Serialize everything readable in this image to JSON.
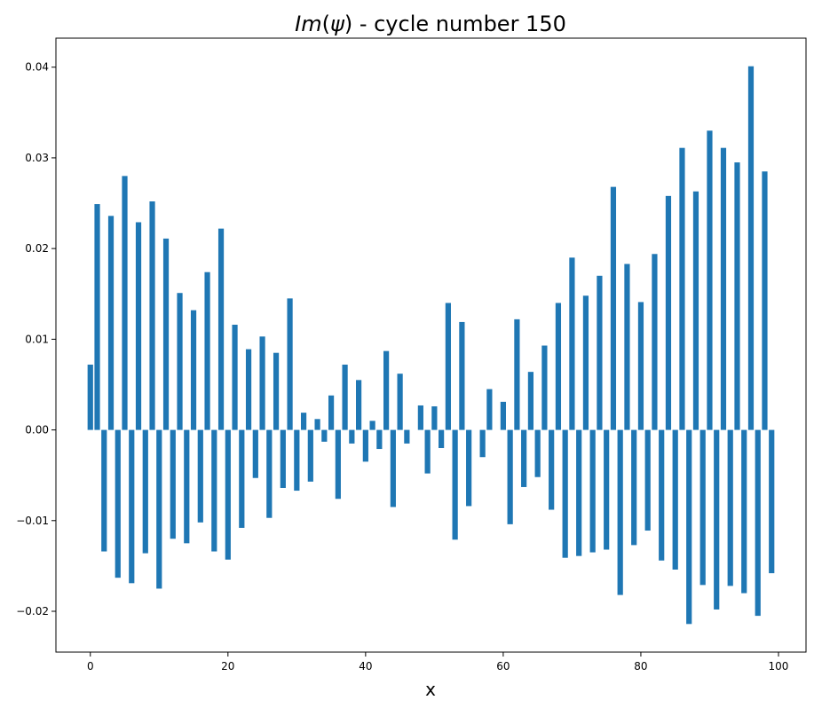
{
  "chart_data": {
    "type": "bar",
    "title_prefix": "Im",
    "title_symbol": "ψ",
    "title_suffix": " - cycle number 150",
    "xlabel": "x",
    "ylabel": "",
    "xlim": [
      -5,
      104
    ],
    "ylim": [
      -0.0245,
      0.0432
    ],
    "x_ticks": [
      0,
      20,
      40,
      60,
      80,
      100
    ],
    "x_tick_labels": [
      "0",
      "20",
      "40",
      "60",
      "80",
      "100"
    ],
    "y_ticks": [
      -0.02,
      -0.01,
      0.0,
      0.01,
      0.02,
      0.03,
      0.04
    ],
    "y_tick_labels": [
      "−0.02",
      "−0.01",
      "0.00",
      "0.01",
      "0.02",
      "0.03",
      "0.04"
    ],
    "bar_width": 0.8,
    "color": "#1f77b4",
    "grid": false,
    "x": [
      0,
      1,
      2,
      3,
      4,
      5,
      6,
      7,
      8,
      9,
      10,
      11,
      12,
      13,
      14,
      15,
      16,
      17,
      18,
      19,
      20,
      21,
      22,
      23,
      24,
      25,
      26,
      27,
      28,
      29,
      30,
      31,
      32,
      33,
      34,
      35,
      36,
      37,
      38,
      39,
      40,
      41,
      42,
      43,
      44,
      45,
      46,
      47,
      48,
      49,
      50,
      51,
      52,
      53,
      54,
      55,
      56,
      57,
      58,
      59,
      60,
      61,
      62,
      63,
      64,
      65,
      66,
      67,
      68,
      69,
      70,
      71,
      72,
      73,
      74,
      75,
      76,
      77,
      78,
      79,
      80,
      81,
      82,
      83,
      84,
      85,
      86,
      87,
      88,
      89,
      90,
      91,
      92,
      93,
      94,
      95,
      96,
      97,
      98,
      99
    ],
    "values": [
      0.0072,
      0.0249,
      -0.0134,
      0.0236,
      -0.0163,
      0.028,
      -0.0169,
      0.0229,
      -0.0136,
      0.0252,
      -0.0175,
      0.0211,
      -0.012,
      0.0151,
      -0.0125,
      0.0132,
      -0.0102,
      0.0174,
      -0.0134,
      0.0222,
      -0.0143,
      0.0116,
      -0.0108,
      0.0089,
      -0.0053,
      0.0103,
      -0.0097,
      0.0085,
      -0.0064,
      0.0145,
      -0.0067,
      0.0019,
      -0.0057,
      0.0012,
      -0.0013,
      0.0038,
      -0.0076,
      0.0072,
      -0.0015,
      0.0055,
      -0.0035,
      0.001,
      -0.0021,
      0.0087,
      -0.0085,
      0.0062,
      -0.0015,
      0.0,
      0.0027,
      -0.0048,
      0.0026,
      -0.002,
      0.014,
      -0.0121,
      0.0119,
      -0.0084,
      0.0,
      -0.003,
      0.0045,
      0.0,
      0.0031,
      -0.0104,
      0.0122,
      -0.0063,
      0.0064,
      -0.0052,
      0.0093,
      -0.0088,
      0.014,
      -0.0141,
      0.019,
      -0.0139,
      0.0148,
      -0.0135,
      0.017,
      -0.0132,
      0.0268,
      -0.0182,
      0.0183,
      -0.0127,
      0.0141,
      -0.0111,
      0.0194,
      -0.0144,
      0.0258,
      -0.0154,
      0.0311,
      -0.0214,
      0.0263,
      -0.0171,
      0.033,
      -0.0198,
      0.0311,
      -0.0172,
      0.0295,
      -0.018,
      0.0401,
      -0.0205,
      0.0285,
      -0.0158
    ]
  }
}
